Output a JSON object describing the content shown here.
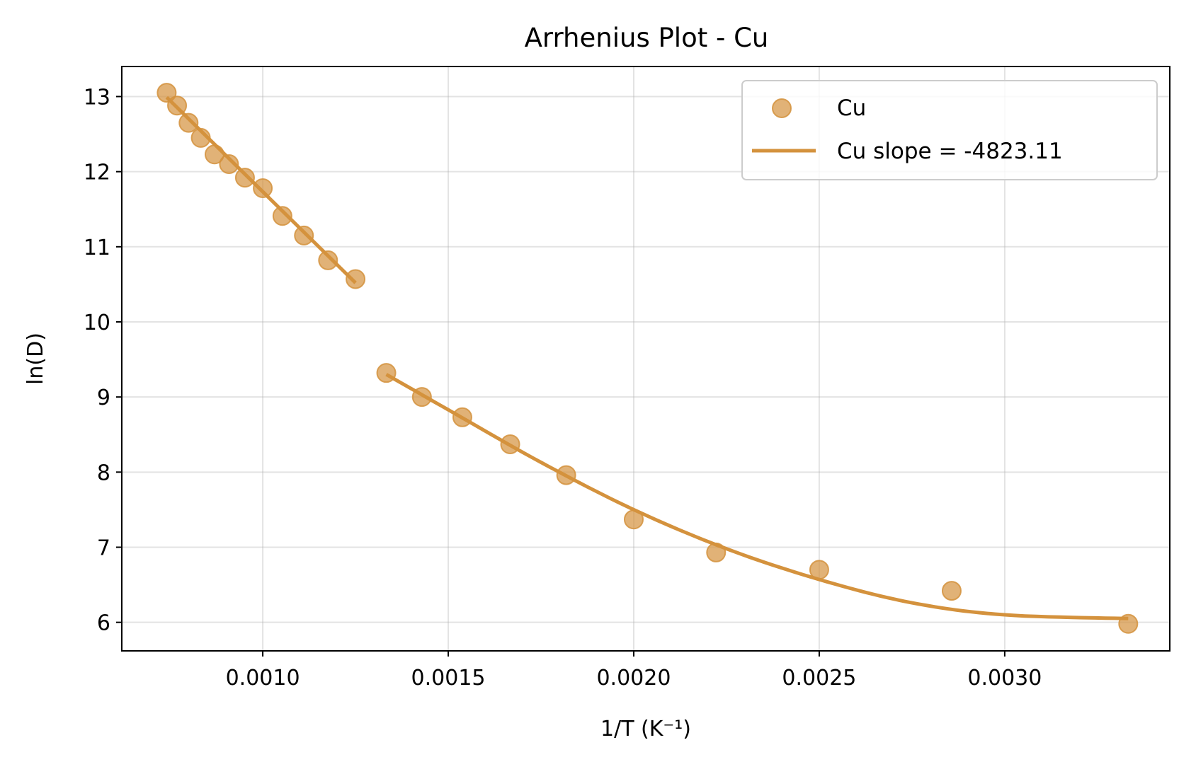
{
  "chart_data": {
    "type": "scatter",
    "title": "Arrhenius Plot - Cu",
    "xlabel": "1/T (K⁻¹)",
    "ylabel": "ln(D)",
    "xlim": [
      0.00062,
      0.003445
    ],
    "ylim": [
      5.62,
      13.4
    ],
    "xticks": [
      0.001,
      0.0015,
      0.002,
      0.0025,
      0.003
    ],
    "xtick_labels": [
      "0.0010",
      "0.0015",
      "0.0020",
      "0.0025",
      "0.0030"
    ],
    "yticks": [
      6,
      7,
      8,
      9,
      10,
      11,
      12,
      13
    ],
    "ytick_labels": [
      "6",
      "7",
      "8",
      "9",
      "10",
      "11",
      "12",
      "13"
    ],
    "grid": true,
    "legend_position": "top-right",
    "color": "#d4923d",
    "series": [
      {
        "name": "Cu",
        "kind": "scatter",
        "x": [
          0.000741,
          0.000769,
          0.0008,
          0.000833,
          0.00087,
          0.000909,
          0.000952,
          0.001,
          0.001053,
          0.001111,
          0.001176,
          0.00125,
          0.001333,
          0.001429,
          0.001538,
          0.001667,
          0.001818,
          0.002,
          0.002222,
          0.0025,
          0.002857,
          0.003333
        ],
        "y": [
          13.05,
          12.88,
          12.65,
          12.45,
          12.23,
          12.1,
          11.92,
          11.78,
          11.41,
          11.15,
          10.82,
          10.57,
          9.32,
          9.0,
          8.73,
          8.37,
          7.96,
          7.37,
          6.93,
          6.7,
          6.42,
          5.98
        ]
      },
      {
        "name": "Cu slope = -4823.11",
        "kind": "line",
        "segments": [
          {
            "x": [
              0.000741,
              0.00125
            ],
            "y": [
              12.99,
              10.52
            ]
          },
          {
            "x": [
              0.001333,
              0.0015,
              0.00175,
              0.002,
              0.00225,
              0.0025,
              0.00275,
              0.003,
              0.003333
            ],
            "y": [
              9.3,
              8.83,
              8.13,
              7.5,
              6.98,
              6.57,
              6.26,
              6.1,
              6.05
            ]
          }
        ]
      }
    ]
  }
}
